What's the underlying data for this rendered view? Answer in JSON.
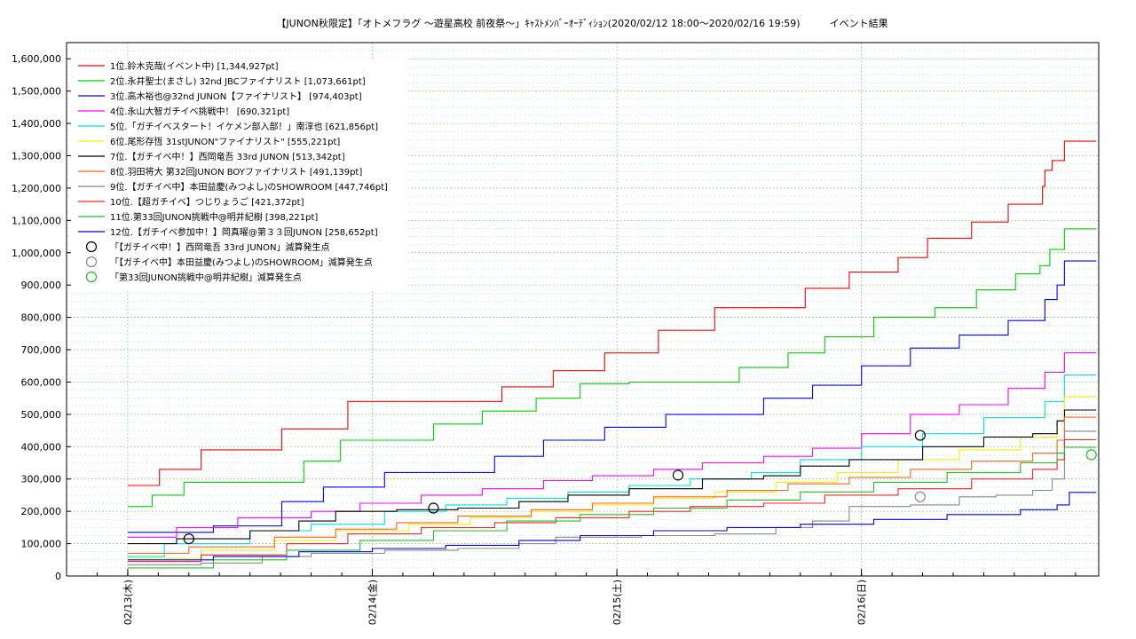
{
  "chart_data": {
    "type": "line",
    "title": "【JUNON秋限定】「オトメフラグ 〜遊星高校 前夜祭〜」ｷｬｽﾄﾒﾝﾊﾞｰｵｰﾃﾞｨｼｮﾝ(2020/02/12 18:00〜2020/02/16 19:59)　　　イベント結果",
    "xlabel": "",
    "ylabel": "",
    "ylim": [
      0,
      1650000
    ],
    "xlim": [
      0,
      4.22
    ],
    "x_unit": "days from 2020/02/12 18:00",
    "yticks": [
      0,
      100000,
      200000,
      300000,
      400000,
      500000,
      600000,
      700000,
      800000,
      900000,
      1000000,
      1100000,
      1200000,
      1300000,
      1400000,
      1500000,
      1600000
    ],
    "ytick_labels": [
      "0",
      "100,000",
      "200,000",
      "300,000",
      "400,000",
      "500,000",
      "600,000",
      "700,000",
      "800,000",
      "900,000",
      "1,000,000",
      "1,100,000",
      "1,200,000",
      "1,300,000",
      "1,400,000",
      "1,500,000",
      "1,600,000"
    ],
    "xticks": [
      0.25,
      1.25,
      2.25,
      3.25
    ],
    "xtick_labels": [
      "02/13(木)",
      "02/14(金)",
      "02/15(土)",
      "02/16(日)"
    ],
    "grid": true,
    "legend_position": "top-left",
    "series": [
      {
        "name": "1位.鈴木克哉(イベント中) [1,344,927pt]",
        "color": "#ff0000",
        "x": [
          0.25,
          0.38,
          0.55,
          0.88,
          1.15,
          1.55,
          1.78,
          1.99,
          2.2,
          2.42,
          2.65,
          2.85,
          3.02,
          3.2,
          3.4,
          3.52,
          3.7,
          3.85,
          3.99,
          4.0,
          4.03,
          4.08,
          4.21
        ],
        "y": [
          280000,
          330000,
          390000,
          455000,
          540000,
          540000,
          585000,
          635000,
          690000,
          760000,
          830000,
          830000,
          890000,
          940000,
          985000,
          1045000,
          1095000,
          1150000,
          1205000,
          1255000,
          1285000,
          1344927,
          1344927
        ]
      },
      {
        "name": "2位.永井聖士(まさし) 32nd JBCファイナリスト [1,073,661pt]",
        "color": "#00d000",
        "x": [
          0.25,
          0.35,
          0.48,
          0.75,
          0.97,
          1.12,
          1.5,
          1.7,
          1.92,
          2.1,
          2.3,
          2.55,
          2.75,
          2.95,
          3.1,
          3.3,
          3.55,
          3.72,
          3.88,
          3.98,
          4.02,
          4.08,
          4.21
        ],
        "y": [
          215000,
          250000,
          290000,
          290000,
          355000,
          420000,
          470000,
          510000,
          550000,
          595000,
          600000,
          600000,
          645000,
          690000,
          740000,
          800000,
          830000,
          885000,
          935000,
          960000,
          1010000,
          1073661,
          1073661
        ]
      },
      {
        "name": "3位.高木裕也@32nd JUNON【ファイナリスト】 [974,403pt]",
        "color": "#0000ff",
        "x": [
          0.25,
          0.6,
          0.88,
          1.05,
          1.3,
          1.55,
          1.75,
          1.95,
          2.2,
          2.45,
          2.65,
          2.85,
          3.05,
          3.25,
          3.45,
          3.65,
          3.85,
          4.0,
          4.05,
          4.08,
          4.21
        ],
        "y": [
          135000,
          155000,
          230000,
          275000,
          320000,
          320000,
          370000,
          420000,
          460000,
          500000,
          500000,
          550000,
          590000,
          650000,
          705000,
          745000,
          790000,
          855000,
          900000,
          974403,
          974403
        ]
      },
      {
        "name": "4位.永山大智ガチイベ挑戦中！ [690,321pt]",
        "color": "#ff00ff",
        "x": [
          0.25,
          0.45,
          0.7,
          1.0,
          1.2,
          1.45,
          1.7,
          1.95,
          2.15,
          2.4,
          2.6,
          2.85,
          3.05,
          3.25,
          3.45,
          3.65,
          3.85,
          4.0,
          4.08,
          4.21
        ],
        "y": [
          120000,
          150000,
          180000,
          200000,
          225000,
          250000,
          270000,
          295000,
          310000,
          330000,
          350000,
          370000,
          395000,
          440000,
          500000,
          530000,
          580000,
          630000,
          690321,
          690321
        ]
      },
      {
        "name": "5位.「ガチイベスタート！イケメン部入部！」南淳也 [621,856pt]",
        "color": "#00e0e0",
        "x": [
          0.25,
          0.4,
          0.75,
          1.0,
          1.3,
          1.55,
          1.8,
          2.05,
          2.3,
          2.55,
          2.8,
          3.0,
          3.25,
          3.5,
          3.75,
          4.0,
          4.08,
          4.21
        ],
        "y": [
          60000,
          100000,
          140000,
          160000,
          200000,
          220000,
          240000,
          260000,
          280000,
          300000,
          320000,
          360000,
          400000,
          440000,
          490000,
          540000,
          621856,
          621856
        ]
      },
      {
        "name": "6位.尾形存恆 31stJUNON\"ファイナリスト\" [555,221pt]",
        "color": "#f0f000",
        "x": [
          0.25,
          0.55,
          0.85,
          1.1,
          1.4,
          1.65,
          1.9,
          2.15,
          2.4,
          2.65,
          2.9,
          3.15,
          3.4,
          3.65,
          3.9,
          4.05,
          4.08,
          4.21
        ],
        "y": [
          55000,
          80000,
          110000,
          140000,
          160000,
          180000,
          200000,
          220000,
          240000,
          260000,
          290000,
          320000,
          360000,
          390000,
          430000,
          480000,
          555221,
          555221
        ]
      },
      {
        "name": "7位.【ガチイベ中！】西岡竜吾 33rd JUNON [513,342pt]",
        "color": "#000000",
        "x": [
          0.25,
          0.45,
          0.75,
          0.95,
          1.1,
          1.35,
          1.6,
          1.85,
          2.05,
          2.3,
          2.6,
          2.85,
          3.0,
          3.2,
          3.5,
          3.75,
          3.95,
          4.05,
          4.08,
          4.21
        ],
        "y": [
          100000,
          115000,
          140000,
          170000,
          200000,
          205000,
          210000,
          230000,
          250000,
          270000,
          300000,
          310000,
          340000,
          360000,
          400000,
          430000,
          440000,
          480000,
          513342,
          513342
        ]
      },
      {
        "name": "8位.羽田将大 第32回JUNON BOYファイナリスト [491,139pt]",
        "color": "#ff6020",
        "x": [
          0.25,
          0.5,
          0.85,
          1.1,
          1.35,
          1.6,
          1.9,
          2.15,
          2.4,
          2.7,
          2.95,
          3.2,
          3.45,
          3.7,
          3.95,
          4.05,
          4.08,
          4.21
        ],
        "y": [
          70000,
          90000,
          120000,
          145000,
          165000,
          185000,
          205000,
          225000,
          245000,
          265000,
          285000,
          305000,
          330000,
          355000,
          380000,
          420000,
          491139,
          491139
        ]
      },
      {
        "name": "9位.【ガチイベ中】本田益慶(みつよし)のSHOWROOM [447,746pt]",
        "color": "#888888",
        "x": [
          0.25,
          0.55,
          0.8,
          1.0,
          1.3,
          1.6,
          1.85,
          2.0,
          2.35,
          2.65,
          2.9,
          3.05,
          3.2,
          3.45,
          3.65,
          3.8,
          3.95,
          4.03,
          4.08,
          4.21
        ],
        "y": [
          35000,
          40000,
          60000,
          70000,
          80000,
          85000,
          100000,
          120000,
          125000,
          130000,
          150000,
          170000,
          215000,
          220000,
          245000,
          250000,
          265000,
          300000,
          447746,
          447746
        ]
      },
      {
        "name": "10位.【超ガチイベ】つじりょうご [421,372pt]",
        "color": "#ff2020",
        "x": [
          0.25,
          0.55,
          0.9,
          1.15,
          1.45,
          1.75,
          2.0,
          2.3,
          2.55,
          2.85,
          3.1,
          3.4,
          3.7,
          3.95,
          4.05,
          4.08,
          4.21
        ],
        "y": [
          45000,
          65000,
          100000,
          130000,
          150000,
          165000,
          180000,
          200000,
          215000,
          225000,
          250000,
          270000,
          300000,
          330000,
          360000,
          421372,
          421372
        ]
      },
      {
        "name": "11位.第33回JUNON挑戦中@明井紀樹 [398,221pt]",
        "color": "#20c020",
        "x": [
          0.25,
          0.6,
          0.9,
          1.2,
          1.5,
          1.8,
          2.1,
          2.4,
          2.7,
          3.0,
          3.3,
          3.6,
          3.9,
          4.05,
          4.08,
          4.21
        ],
        "y": [
          25000,
          50000,
          80000,
          110000,
          140000,
          170000,
          190000,
          210000,
          235000,
          260000,
          290000,
          320000,
          350000,
          380000,
          398221,
          398221
        ]
      },
      {
        "name": "12位.【ガチイベ参加中！】岡真曜@第３３回JUNON [258,652pt]",
        "color": "#0000e0",
        "x": [
          0.25,
          0.6,
          0.95,
          1.25,
          1.55,
          1.85,
          2.1,
          2.4,
          2.7,
          3.0,
          3.3,
          3.6,
          3.9,
          4.05,
          4.1,
          4.21
        ],
        "y": [
          50000,
          60000,
          75000,
          85000,
          95000,
          110000,
          125000,
          140000,
          150000,
          160000,
          175000,
          190000,
          205000,
          220000,
          258652,
          258652
        ]
      }
    ],
    "markers": [
      {
        "name": "「【ガチイベ中！】西岡竜吾 33rd JUNON」減算発生点",
        "color": "#000000",
        "points": [
          [
            0.5,
            115000
          ],
          [
            1.5,
            210000
          ],
          [
            2.5,
            312000
          ],
          [
            3.49,
            435000
          ]
        ]
      },
      {
        "name": "「【ガチイベ中】本田益慶(みつよし)のSHOWROOM」減算発生点",
        "color": "#888888",
        "points": [
          [
            3.49,
            245000
          ]
        ]
      },
      {
        "name": "「第33回JUNON挑戦中@明井紀樹」減算発生点",
        "color": "#20c020",
        "points": [
          [
            4.19,
            375000
          ]
        ]
      }
    ]
  }
}
